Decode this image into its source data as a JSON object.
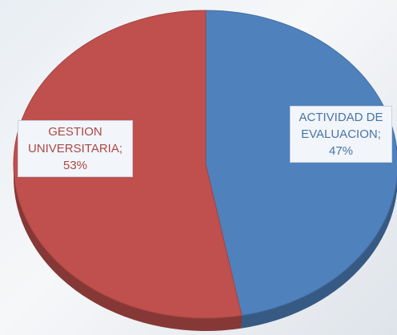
{
  "chart_data": {
    "type": "pie",
    "categories": [
      "ACTIVIDAD DE EVALUACION",
      "GESTION UNIVERSITARIA"
    ],
    "values": [
      47,
      53
    ],
    "value_labels": [
      "47%",
      "53%"
    ],
    "label_separator": ";",
    "colors": [
      "#4f81bd",
      "#c0504d"
    ],
    "start_angle": 0
  }
}
